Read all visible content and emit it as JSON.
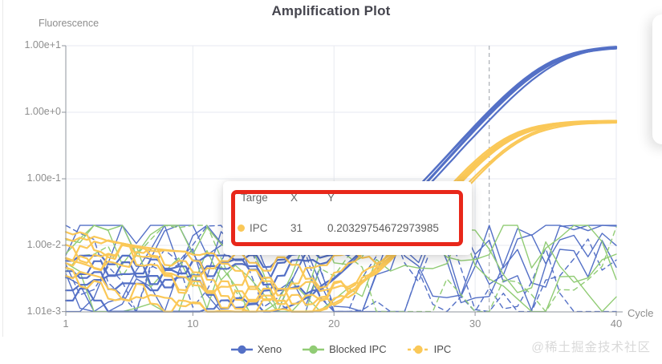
{
  "title": "Amplification Plot",
  "watermark": "@稀土掘金技术社区",
  "colors": {
    "xeno_blue": "#5470c6",
    "blocked_ipc_green": "#91cc75",
    "ipc_yellow": "#fac858",
    "annotation_red": "#e8271a",
    "grid_line": "#e7eaf0",
    "axis_line": "#8f949c",
    "tick_text": "#8e8e8e",
    "marker_dashed_line": "#9aa0a6"
  },
  "tooltip": {
    "header": {
      "target": "Targe",
      "x": "X",
      "y": "Y"
    },
    "row": {
      "series": "IPC",
      "x": "31",
      "y": "0.20329754672973985",
      "color": "#fac858"
    }
  },
  "chart_data": {
    "type": "line",
    "title": "Amplification Plot",
    "xlabel": "Cycle",
    "ylabel": "Fluorescence",
    "x_axis": {
      "ticks": [
        1,
        10,
        20,
        30,
        40
      ],
      "range": [
        1,
        40
      ]
    },
    "y_axis": {
      "scale": "log",
      "tick_labels": [
        "1.00e+1",
        "1.00e+0",
        "1.00e-1",
        "1.00e-2",
        "1.01e-3"
      ],
      "tick_values": [
        10,
        1,
        0.1,
        0.01,
        0.00101
      ],
      "range": [
        0.001,
        10
      ]
    },
    "grid": true,
    "legend_position": "bottom",
    "threshold_marker": {
      "x": 31,
      "style": "dashed"
    },
    "highlighted_point": {
      "series": "IPC",
      "x": 31,
      "y": 0.20329754672973985
    },
    "noise_band": [
      0.001,
      0.02
    ],
    "series": [
      {
        "name": "Xeno",
        "color": "#5470c6",
        "kind": "amplification",
        "plateau": 10,
        "midpoint_cycle": 35,
        "rate": 0.55,
        "replicates": 5,
        "non_amplified_traces": 6,
        "legend_dash": false,
        "sampled_curve": {
          "cycles": [
            20,
            22,
            24,
            26,
            28,
            30,
            32,
            34,
            36,
            38,
            40
          ],
          "values": [
            0.003,
            0.008,
            0.023,
            0.069,
            0.21,
            0.6,
            1.61,
            3.66,
            6.34,
            8.39,
            9.4
          ]
        }
      },
      {
        "name": "Blocked IPC",
        "color": "#91cc75",
        "kind": "flat-noise",
        "plateau": 0,
        "midpoint_cycle": 0,
        "rate": 0,
        "replicates": 0,
        "non_amplified_traces": 4,
        "legend_dash": false,
        "sampled_curve": {
          "cycles": [],
          "values": []
        }
      },
      {
        "name": "IPC",
        "color": "#fac858",
        "kind": "amplification",
        "plateau": 0.72,
        "midpoint_cycle": 32.5,
        "rate": 0.6,
        "replicates": 8,
        "non_amplified_traces": 0,
        "legend_dash": true,
        "sampled_curve": {
          "cycles": [
            26,
            28,
            30,
            31,
            32,
            34,
            36,
            38,
            40
          ],
          "values": [
            0.014,
            0.046,
            0.132,
            0.203,
            0.306,
            0.513,
            0.641,
            0.694,
            0.712
          ]
        }
      }
    ]
  }
}
